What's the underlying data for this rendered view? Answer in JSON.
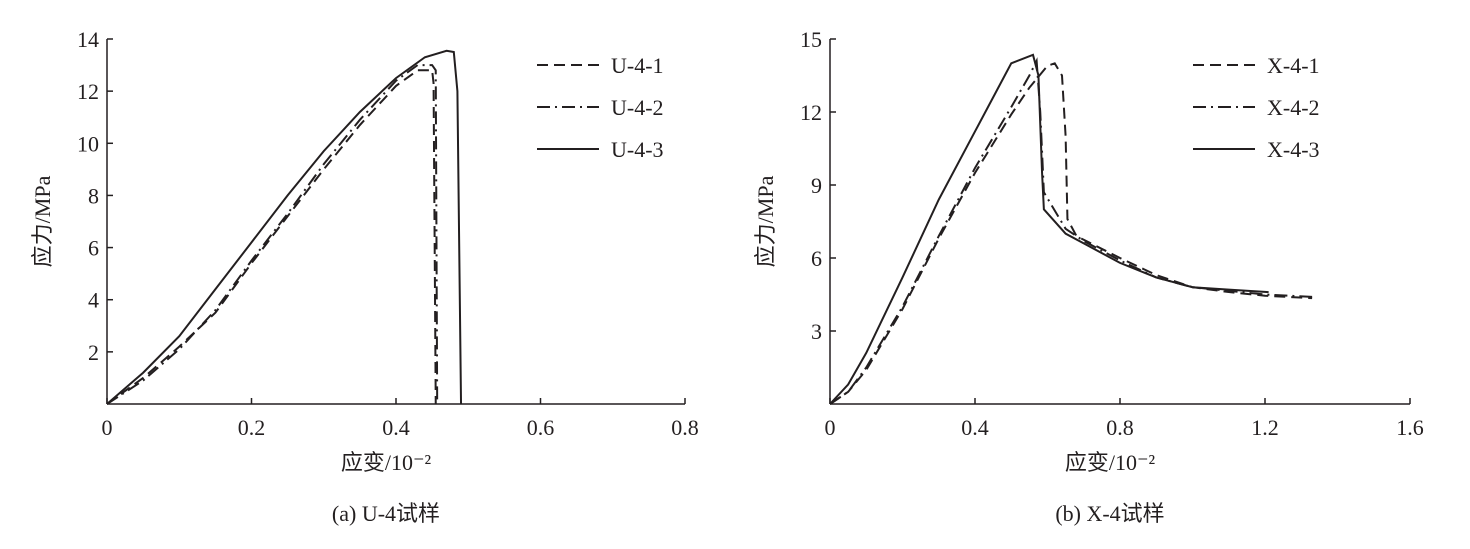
{
  "chart_data": [
    {
      "type": "line",
      "caption": "(a) U-4试样",
      "xlabel": "应变/10⁻²",
      "ylabel": "应力/MPa",
      "xlim": [
        0,
        0.8
      ],
      "xticks": [
        0,
        0.2,
        0.4,
        0.6,
        0.8
      ],
      "ylim": [
        0,
        14
      ],
      "yticks": [
        2,
        4,
        6,
        8,
        10,
        12,
        14
      ],
      "legend": "upper right",
      "series": [
        {
          "name": "U-4-1",
          "color": "#231f20",
          "dash": "dashed",
          "x": [
            0,
            0.05,
            0.1,
            0.15,
            0.2,
            0.25,
            0.3,
            0.35,
            0.4,
            0.43,
            0.45,
            0.452,
            0.455
          ],
          "values": [
            0,
            1.0,
            2.2,
            3.5,
            5.4,
            7.2,
            9.0,
            10.7,
            12.2,
            12.8,
            12.8,
            12.3,
            0
          ]
        },
        {
          "name": "U-4-2",
          "color": "#231f20",
          "dash": "dashdot",
          "x": [
            0,
            0.05,
            0.1,
            0.15,
            0.2,
            0.25,
            0.3,
            0.35,
            0.4,
            0.43,
            0.45,
            0.455,
            0.457
          ],
          "values": [
            0,
            0.9,
            2.1,
            3.6,
            5.5,
            7.3,
            9.2,
            10.9,
            12.4,
            13.0,
            13.0,
            12.8,
            0
          ]
        },
        {
          "name": "U-4-3",
          "color": "#231f20",
          "dash": "solid",
          "x": [
            0,
            0.05,
            0.1,
            0.15,
            0.2,
            0.25,
            0.3,
            0.35,
            0.4,
            0.44,
            0.47,
            0.48,
            0.485,
            0.49
          ],
          "values": [
            0,
            1.2,
            2.6,
            4.4,
            6.2,
            8.0,
            9.7,
            11.2,
            12.5,
            13.3,
            13.55,
            13.5,
            12,
            0
          ]
        }
      ]
    },
    {
      "type": "line",
      "caption": "(b) X-4试样",
      "xlabel": "应变/10⁻²",
      "ylabel": "应力/MPa",
      "xlim": [
        0,
        1.6
      ],
      "xticks": [
        0,
        0.4,
        0.8,
        1.2,
        1.6
      ],
      "ylim": [
        0,
        15
      ],
      "yticks": [
        3,
        6,
        9,
        12,
        15
      ],
      "legend": "upper right",
      "series": [
        {
          "name": "X-4-1",
          "color": "#231f20",
          "dash": "dashed",
          "x": [
            0,
            0.05,
            0.1,
            0.2,
            0.3,
            0.4,
            0.5,
            0.55,
            0.6,
            0.62,
            0.64,
            0.65,
            0.655,
            0.68,
            0.8,
            0.9,
            1.0,
            1.1,
            1.2,
            1.33
          ],
          "values": [
            0,
            0.5,
            1.4,
            3.9,
            6.8,
            9.5,
            11.9,
            13.0,
            13.9,
            14.0,
            13.5,
            11,
            7.6,
            6.9,
            6.0,
            5.3,
            4.8,
            4.6,
            4.45,
            4.35
          ]
        },
        {
          "name": "X-4-2",
          "color": "#231f20",
          "dash": "dashdot",
          "x": [
            0,
            0.05,
            0.1,
            0.2,
            0.3,
            0.4,
            0.5,
            0.55,
            0.57,
            0.58,
            0.59,
            0.65,
            0.7,
            0.8,
            0.9,
            1.0,
            1.2,
            1.33
          ],
          "values": [
            0,
            0.5,
            1.5,
            4.0,
            6.9,
            9.7,
            12.2,
            13.5,
            14.1,
            12,
            8.7,
            7.2,
            6.7,
            5.9,
            5.2,
            4.8,
            4.5,
            4.4
          ]
        },
        {
          "name": "X-4-3",
          "color": "#231f20",
          "dash": "solid",
          "x": [
            0,
            0.05,
            0.1,
            0.2,
            0.3,
            0.4,
            0.45,
            0.5,
            0.56,
            0.575,
            0.585,
            0.59,
            0.65,
            0.7,
            0.8,
            0.9,
            1.0,
            1.1,
            1.21
          ],
          "values": [
            0,
            0.8,
            2.1,
            5.2,
            8.4,
            11.2,
            12.6,
            14.0,
            14.35,
            13.5,
            9.5,
            8.0,
            7.0,
            6.6,
            5.8,
            5.2,
            4.8,
            4.7,
            4.6
          ]
        }
      ]
    }
  ]
}
